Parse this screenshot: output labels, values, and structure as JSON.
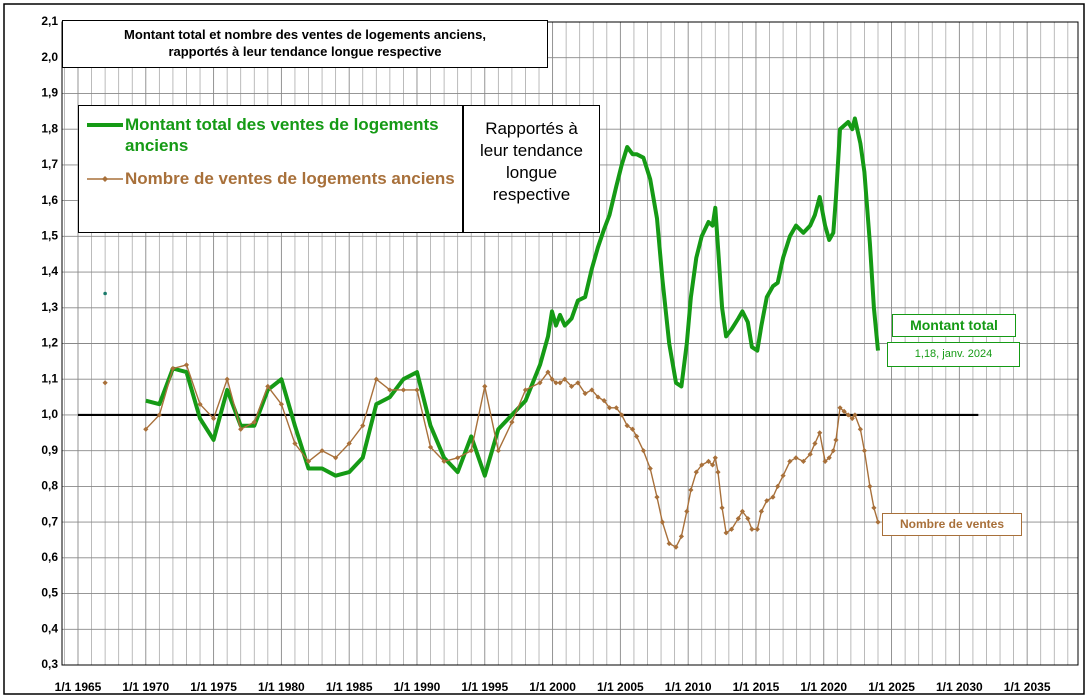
{
  "chart_data": {
    "type": "line",
    "title": [
      "Montant total et nombre des ventes de logements anciens,",
      "rapportés à leur tendance longue respective"
    ],
    "x": [
      1967,
      1968,
      1970,
      1971,
      1972,
      1973,
      1974,
      1975,
      1976,
      1977,
      1978,
      1979,
      1980,
      1981,
      1982,
      1983,
      1984,
      1985,
      1986,
      1987,
      1988,
      1989,
      1990,
      1991,
      1992,
      1993,
      1994,
      1995,
      1996,
      1997,
      1998,
      1999.07,
      1999.66,
      1999.96,
      2000.25,
      2000.55,
      2000.9,
      2001.4,
      2001.87,
      2002.4,
      2002.9,
      2003.35,
      2003.8,
      2004.2,
      2004.7,
      2005.1,
      2005.5,
      2005.9,
      2006.2,
      2006.7,
      2007.2,
      2007.7,
      2008.1,
      2008.6,
      2009.1,
      2009.5,
      2009.9,
      2010.2,
      2010.6,
      2011.0,
      2011.5,
      2011.8,
      2012.0,
      2012.2,
      2012.5,
      2012.8,
      2013.2,
      2013.7,
      2014.0,
      2014.4,
      2014.7,
      2015.1,
      2015.4,
      2015.8,
      2016.25,
      2016.6,
      2017.0,
      2017.5,
      2017.95,
      2018.5,
      2019.0,
      2019.35,
      2019.7,
      2020.1,
      2020.4,
      2020.7,
      2020.9,
      2021.2,
      2021.5,
      2021.8,
      2022.1,
      2022.3,
      2022.7,
      2023.0,
      2023.4,
      2023.7,
      2024.0
    ],
    "series": [
      {
        "name": "Montant total des ventes de logements anciens",
        "color": "#159a15",
        "markers": false,
        "values": [
          1.34,
          null,
          1.04,
          1.03,
          1.13,
          1.12,
          0.99,
          0.93,
          1.07,
          0.97,
          0.97,
          1.07,
          1.1,
          0.97,
          0.85,
          0.85,
          0.83,
          0.84,
          0.88,
          1.03,
          1.05,
          1.1,
          1.12,
          0.97,
          0.88,
          0.84,
          0.94,
          0.83,
          0.96,
          1.0,
          1.04,
          1.14,
          1.22,
          1.29,
          1.25,
          1.28,
          1.25,
          1.27,
          1.32,
          1.33,
          1.41,
          1.47,
          1.52,
          1.56,
          1.64,
          1.7,
          1.75,
          1.73,
          1.73,
          1.72,
          1.66,
          1.55,
          1.38,
          1.2,
          1.09,
          1.08,
          1.2,
          1.33,
          1.44,
          1.5,
          1.54,
          1.53,
          1.58,
          1.47,
          1.3,
          1.22,
          1.24,
          1.27,
          1.29,
          1.26,
          1.19,
          1.18,
          1.25,
          1.33,
          1.36,
          1.37,
          1.44,
          1.5,
          1.53,
          1.51,
          1.53,
          1.56,
          1.61,
          1.53,
          1.49,
          1.51,
          1.61,
          1.8,
          1.81,
          1.82,
          1.8,
          1.83,
          1.76,
          1.68,
          1.48,
          1.3,
          1.18
        ]
      },
      {
        "name": "Nombre de ventes de logements anciens",
        "color": "#a8703a",
        "markers": true,
        "values": [
          1.09,
          null,
          0.96,
          1.0,
          1.13,
          1.14,
          1.03,
          0.99,
          1.1,
          0.96,
          0.98,
          1.08,
          1.03,
          0.92,
          0.87,
          0.9,
          0.88,
          0.92,
          0.97,
          1.1,
          1.07,
          1.07,
          1.07,
          0.91,
          0.87,
          0.88,
          0.9,
          1.08,
          0.9,
          0.98,
          1.07,
          1.09,
          1.12,
          1.1,
          1.09,
          1.09,
          1.1,
          1.08,
          1.09,
          1.06,
          1.07,
          1.05,
          1.04,
          1.02,
          1.02,
          1.0,
          0.97,
          0.96,
          0.94,
          0.9,
          0.85,
          0.77,
          0.7,
          0.64,
          0.63,
          0.66,
          0.73,
          0.79,
          0.84,
          0.86,
          0.87,
          0.86,
          0.88,
          0.84,
          0.74,
          0.67,
          0.68,
          0.71,
          0.73,
          0.71,
          0.68,
          0.68,
          0.73,
          0.76,
          0.77,
          0.8,
          0.83,
          0.87,
          0.88,
          0.87,
          0.89,
          0.92,
          0.95,
          0.87,
          0.88,
          0.9,
          0.93,
          1.02,
          1.01,
          1.0,
          0.99,
          1.0,
          0.96,
          0.9,
          0.8,
          0.74,
          0.7
        ]
      }
    ],
    "reference_line": {
      "y": 1,
      "x": [
        1965,
        2031.4
      ]
    },
    "xlim": [
      1963.82,
      2038.75
    ],
    "xticks": [
      {
        "value": 1965,
        "label": "1/1 1965"
      },
      {
        "value": 1970,
        "label": "1/1 1970"
      },
      {
        "value": 1975,
        "label": "1/1 1975"
      },
      {
        "value": 1980,
        "label": "1/1 1980"
      },
      {
        "value": 1985,
        "label": "1/1 1985"
      },
      {
        "value": 1990,
        "label": "1/1 1990"
      },
      {
        "value": 1995,
        "label": "1/1 1995"
      },
      {
        "value": 2000,
        "label": "1/1 2000"
      },
      {
        "value": 2005,
        "label": "1/1 2005"
      },
      {
        "value": 2010,
        "label": "1/1 2010"
      },
      {
        "value": 2015,
        "label": "1/1 2015"
      },
      {
        "value": 2020,
        "label": "1/1 2020"
      },
      {
        "value": 2025,
        "label": "1/1 2025"
      },
      {
        "value": 2030,
        "label": "1/1 2030"
      },
      {
        "value": 2035,
        "label": "1/1 2035"
      }
    ],
    "x_minor_grid": [
      1964,
      1966,
      1967,
      1968,
      1969,
      1971,
      1972,
      1973,
      1974,
      1976,
      1977,
      1978,
      1979,
      1981,
      1982,
      1983,
      1984,
      1986,
      1987,
      1988,
      1989,
      1991,
      1992,
      1993,
      1994,
      1996,
      1997,
      1998,
      1999,
      2001,
      2002,
      2003,
      2004,
      2006,
      2007,
      2008,
      2009,
      2011,
      2012,
      2013,
      2014,
      2016,
      2017,
      2018,
      2019,
      2021,
      2022,
      2023,
      2024,
      2026,
      2027,
      2028,
      2029,
      2031,
      2032,
      2033,
      2034,
      2036,
      2037,
      2038
    ],
    "ylim": [
      0.3,
      2.1
    ],
    "yticks": [
      {
        "value": 0.3,
        "label": "0,3"
      },
      {
        "value": 0.4,
        "label": "0,4"
      },
      {
        "value": 0.5,
        "label": "0,5"
      },
      {
        "value": 0.6,
        "label": "0,6"
      },
      {
        "value": 0.7,
        "label": "0,7"
      },
      {
        "value": 0.8,
        "label": "0,8"
      },
      {
        "value": 0.9,
        "label": "0,9"
      },
      {
        "value": 1.0,
        "label": "1,0"
      },
      {
        "value": 1.1,
        "label": "1,1"
      },
      {
        "value": 1.2,
        "label": "1,2"
      },
      {
        "value": 1.3,
        "label": "1,3"
      },
      {
        "value": 1.4,
        "label": "1,4"
      },
      {
        "value": 1.5,
        "label": "1,5"
      },
      {
        "value": 1.6,
        "label": "1,6"
      },
      {
        "value": 1.7,
        "label": "1,7"
      },
      {
        "value": 1.8,
        "label": "1,8"
      },
      {
        "value": 1.9,
        "label": "1,9"
      },
      {
        "value": 2.0,
        "label": "2,0"
      },
      {
        "value": 2.1,
        "label": "2,1"
      }
    ],
    "grid": true,
    "annotations": {
      "note": [
        "Rapportés à",
        "leur tendance",
        "longue",
        "respective"
      ],
      "label_total": "Montant total",
      "label_total_value": "1,18, janv. 2024",
      "label_count": "Nombre de ventes"
    }
  }
}
